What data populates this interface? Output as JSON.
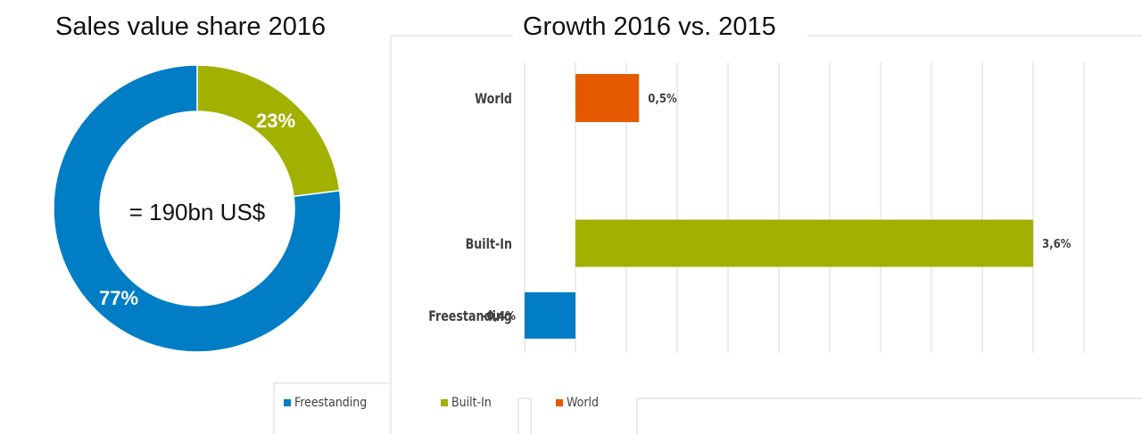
{
  "chart_data": [
    {
      "type": "pie",
      "variant": "donut",
      "title": "Sales value share 2016",
      "center_label": "= 190bn US$",
      "slices": [
        {
          "name": "Built-In",
          "value": 23,
          "label": "23%",
          "color": "#a2b000"
        },
        {
          "name": "Freestanding",
          "value": 77,
          "label": "77%",
          "color": "#007dc5"
        }
      ]
    },
    {
      "type": "bar",
      "orientation": "horizontal",
      "title": "Growth 2016 vs. 2015",
      "categories": [
        "World",
        "Built-In",
        "Freestanding"
      ],
      "values": [
        0.5,
        3.6,
        -0.4
      ],
      "labels": [
        "0,5%",
        "3,6%",
        "-0,4%"
      ],
      "colors": [
        "#e55a00",
        "#a2b000",
        "#007dc5"
      ],
      "xlim": [
        -0.4,
        4.0
      ],
      "grid": true,
      "legend": {
        "position": "bottom",
        "entries": [
          {
            "name": "Freestanding",
            "color": "#007dc5"
          },
          {
            "name": "Built-In",
            "color": "#a2b000"
          },
          {
            "name": "World",
            "color": "#e55a00"
          }
        ]
      }
    }
  ]
}
